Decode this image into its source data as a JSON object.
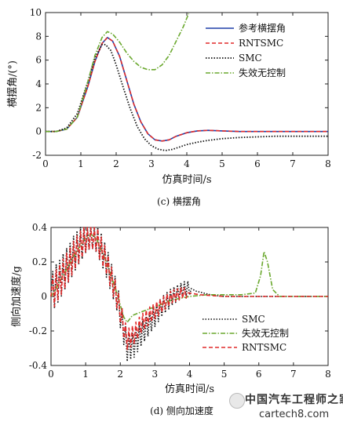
{
  "charts": [
    {
      "type": "line",
      "caption": "(c) 横摆角",
      "xlabel": "仿真时间/s",
      "ylabel": "横摆角/(°)",
      "xlim": [
        0,
        8
      ],
      "ylim": [
        -2,
        10
      ],
      "xticks": [
        "0",
        "1",
        "2",
        "3",
        "4",
        "5",
        "6",
        "7",
        "8"
      ],
      "yticks": [
        "-2",
        "0",
        "2",
        "4",
        "6",
        "8",
        "10"
      ],
      "legend_position": "top-right",
      "series": [
        {
          "name": "参考横摆角",
          "color": "#1f3fa8",
          "dash": "",
          "width": 1.6,
          "x": [
            0,
            0.3,
            0.6,
            0.9,
            1.2,
            1.4,
            1.6,
            1.75,
            1.9,
            2.1,
            2.3,
            2.5,
            2.7,
            2.9,
            3.1,
            3.3,
            3.5,
            3.7,
            4.0,
            4.3,
            4.6,
            5.0,
            5.5,
            6.0,
            7.0,
            8.0
          ],
          "y": [
            0,
            0,
            0.2,
            1.2,
            3.8,
            5.9,
            7.4,
            7.9,
            7.6,
            6.3,
            4.3,
            2.3,
            0.8,
            -0.2,
            -0.7,
            -0.8,
            -0.7,
            -0.4,
            -0.1,
            0.05,
            0.1,
            0.05,
            0,
            0,
            0,
            0
          ]
        },
        {
          "name": "RNTSMC",
          "color": "#e02a2a",
          "dash": "5,3",
          "width": 1.6,
          "x": [
            0,
            0.3,
            0.6,
            0.9,
            1.2,
            1.4,
            1.6,
            1.75,
            1.9,
            2.1,
            2.3,
            2.5,
            2.7,
            2.9,
            3.1,
            3.3,
            3.5,
            3.7,
            4.0,
            4.3,
            4.6,
            5.0,
            5.5,
            6.0,
            7.0,
            8.0
          ],
          "y": [
            0,
            0,
            0.2,
            1.2,
            3.8,
            5.9,
            7.4,
            7.9,
            7.6,
            6.3,
            4.3,
            2.3,
            0.8,
            -0.2,
            -0.7,
            -0.8,
            -0.7,
            -0.4,
            -0.1,
            0.05,
            0.1,
            0.05,
            0,
            0,
            0,
            0
          ]
        },
        {
          "name": "SMC",
          "color": "#111111",
          "dash": "1.5,2",
          "width": 1.8,
          "x": [
            0,
            0.3,
            0.6,
            0.9,
            1.2,
            1.4,
            1.6,
            1.7,
            1.85,
            2.0,
            2.2,
            2.4,
            2.6,
            2.8,
            3.0,
            3.2,
            3.4,
            3.6,
            3.8,
            4.0,
            4.3,
            4.6,
            5.0,
            5.5,
            6.0,
            6.5,
            7.0,
            8.0
          ],
          "y": [
            0,
            0,
            0.3,
            1.5,
            4.2,
            6.2,
            7.3,
            7.3,
            6.8,
            5.6,
            3.7,
            1.9,
            0.4,
            -0.6,
            -1.2,
            -1.5,
            -1.6,
            -1.5,
            -1.3,
            -1.1,
            -0.9,
            -0.75,
            -0.6,
            -0.5,
            -0.45,
            -0.4,
            -0.4,
            -0.4
          ]
        },
        {
          "name": "失效无控制",
          "color": "#6aa82e",
          "dash": "6,2,1.5,2",
          "width": 1.6,
          "x": [
            0,
            0.3,
            0.6,
            0.9,
            1.2,
            1.4,
            1.6,
            1.75,
            1.9,
            2.1,
            2.3,
            2.5,
            2.7,
            2.9,
            3.1,
            3.3,
            3.5,
            3.7,
            3.9,
            4.05
          ],
          "y": [
            0,
            0,
            0.2,
            1.2,
            4.2,
            6.4,
            7.9,
            8.4,
            8.2,
            7.5,
            6.6,
            5.9,
            5.4,
            5.2,
            5.2,
            5.6,
            6.4,
            7.6,
            8.8,
            9.9
          ]
        }
      ]
    },
    {
      "type": "line",
      "caption": "(d) 侧向加速度",
      "xlabel": "仿真时间/s",
      "ylabel": "侧向加速度/g",
      "xlim": [
        0,
        8
      ],
      "ylim": [
        -0.4,
        0.4
      ],
      "xticks": [
        "0",
        "1",
        "2",
        "3",
        "4",
        "5",
        "6",
        "7",
        "8"
      ],
      "yticks": [
        "-0.4",
        "-0.2",
        "0",
        "0.2",
        "0.4"
      ],
      "legend_position": "bottom-right",
      "series": [
        {
          "name": "SMC",
          "color": "#111111",
          "dash": "1.5,2",
          "width": 1.6,
          "osc": {
            "x_start": 0.03,
            "x_end": 4.0,
            "step": 0.05,
            "amp_start": 0.12,
            "amp_end": 0.04
          },
          "x": [
            0,
            0.1,
            0.4,
            0.7,
            1.0,
            1.15,
            1.3,
            1.6,
            1.9,
            2.1,
            2.2,
            2.4,
            2.6,
            2.9,
            3.2,
            3.5,
            3.8,
            4.0,
            4.2,
            4.6,
            5.0,
            6.0,
            7.0,
            8.0
          ],
          "y": [
            0,
            0.05,
            0.15,
            0.26,
            0.35,
            0.38,
            0.35,
            0.2,
            0.0,
            -0.2,
            -0.3,
            -0.28,
            -0.22,
            -0.14,
            -0.06,
            0.0,
            0.04,
            0.05,
            0.03,
            0.01,
            0,
            0,
            0,
            0
          ]
        },
        {
          "name": "失效无控制",
          "color": "#6aa82e",
          "dash": "6,2,1.5,2",
          "width": 1.6,
          "x": [
            0,
            0.1,
            0.4,
            0.7,
            1.0,
            1.15,
            1.3,
            1.6,
            1.9,
            2.1,
            2.2,
            2.35,
            2.6,
            3.0,
            3.5,
            4.0,
            4.5,
            5.0,
            5.5,
            5.9,
            6.05,
            6.15,
            6.25,
            6.4,
            6.6,
            7.0,
            8.0
          ],
          "y": [
            0,
            0.03,
            0.14,
            0.25,
            0.34,
            0.36,
            0.34,
            0.2,
            0.02,
            -0.12,
            -0.15,
            -0.11,
            -0.09,
            -0.06,
            -0.02,
            0.0,
            0.01,
            0.01,
            0.01,
            0.02,
            0.12,
            0.26,
            0.2,
            0.04,
            0.0,
            0,
            0
          ]
        },
        {
          "name": "RNTSMC",
          "color": "#e02a2a",
          "dash": "5,3",
          "width": 1.6,
          "osc": {
            "x_start": 0.03,
            "x_end": 3.9,
            "step": 0.05,
            "amp_start": 0.1,
            "amp_end": 0.03
          },
          "x": [
            0,
            0.1,
            0.4,
            0.7,
            1.0,
            1.15,
            1.3,
            1.6,
            1.9,
            2.1,
            2.2,
            2.4,
            2.6,
            2.9,
            3.2,
            3.5,
            3.8,
            4.0,
            4.3,
            5.0,
            6.0,
            7.0,
            8.0
          ],
          "y": [
            0,
            0.04,
            0.14,
            0.25,
            0.34,
            0.36,
            0.34,
            0.2,
            0.0,
            -0.18,
            -0.25,
            -0.22,
            -0.16,
            -0.1,
            -0.05,
            0.0,
            0.02,
            0.02,
            0.01,
            0,
            0,
            0,
            0
          ]
        }
      ]
    }
  ],
  "watermark": {
    "line1": "中国汽车工程师之家",
    "line2": "cartech8.com"
  }
}
